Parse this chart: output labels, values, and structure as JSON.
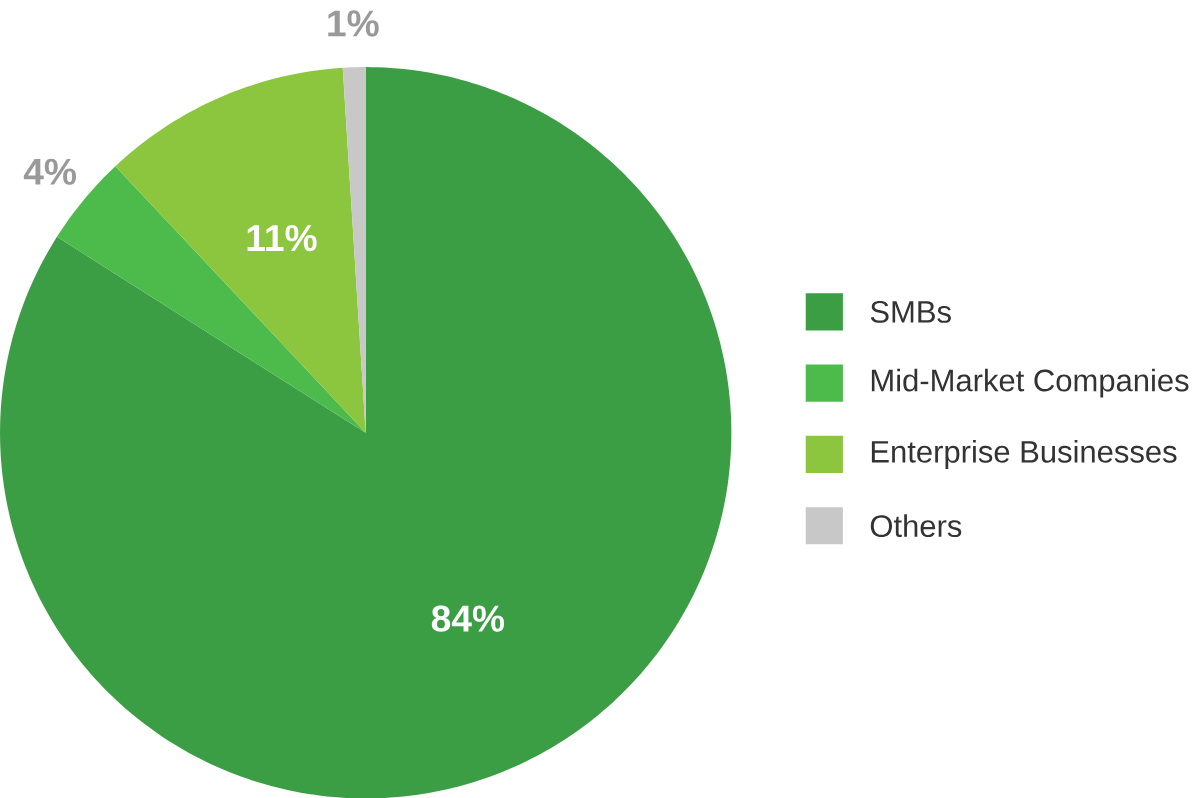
{
  "chart_data": {
    "type": "pie",
    "categories": [
      "SMBs",
      "Mid-Market Companies",
      "Enterprise Businesses",
      "Others"
    ],
    "values": [
      84,
      4,
      11,
      1
    ],
    "value_labels": [
      "84%",
      "4%",
      "11%",
      "1%"
    ],
    "colors": [
      "#3b9e45",
      "#4dbb4b",
      "#8cc63f",
      "#c8c8c8"
    ],
    "legend": "right"
  }
}
